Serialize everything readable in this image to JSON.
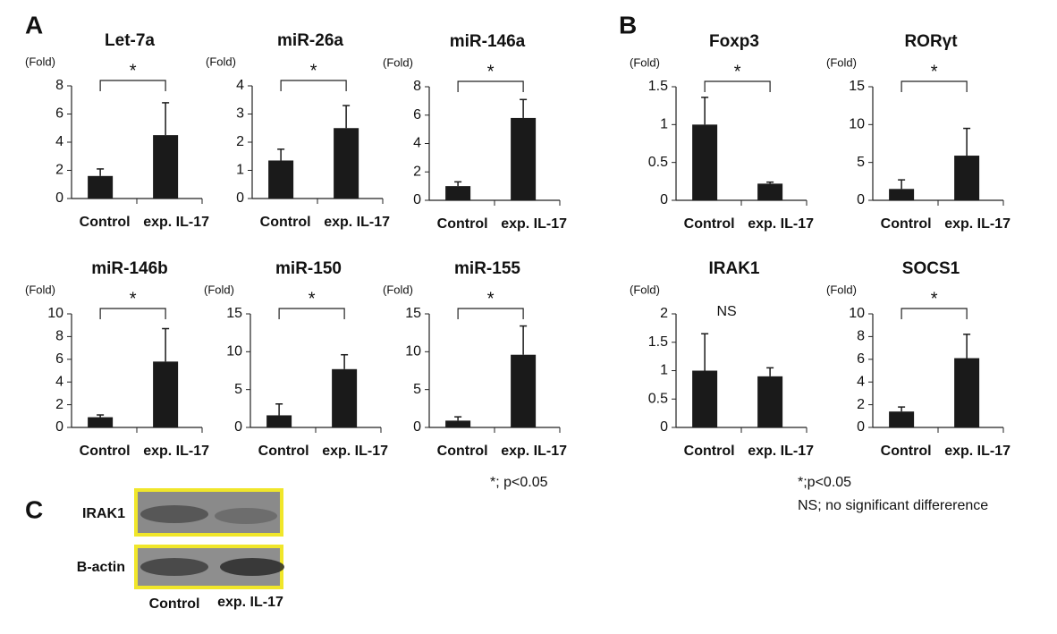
{
  "panel_labels": [
    "A",
    "B",
    "C"
  ],
  "notes": [
    "*; p<0.05",
    "*;p<0.05",
    "NS; no significant differerence"
  ],
  "blot": {
    "rows": [
      "IRAK1",
      "B-actin"
    ],
    "lanes": [
      "Control",
      "exp. IL-17"
    ]
  },
  "chart_data": [
    {
      "type": "bar",
      "title": "Let-7a",
      "y_label": "(Fold)",
      "categories": [
        "Control",
        "exp. IL-17"
      ],
      "values": [
        1.6,
        4.5
      ],
      "errors": [
        0.5,
        2.3
      ],
      "color": "#1a1a1a",
      "ylim": [
        0,
        8
      ],
      "yticks": [
        0,
        2,
        4,
        6,
        8
      ],
      "annotation": "*",
      "bracket": true
    },
    {
      "type": "bar",
      "title": "miR-26a",
      "y_label": "(Fold)",
      "categories": [
        "Control",
        "exp. IL-17"
      ],
      "values": [
        1.35,
        2.5
      ],
      "errors": [
        0.4,
        0.8
      ],
      "color": "#1a1a1a",
      "ylim": [
        0,
        4
      ],
      "yticks": [
        0,
        1,
        2,
        3,
        4
      ],
      "annotation": "*",
      "bracket": true
    },
    {
      "type": "bar",
      "title": "miR-146a",
      "y_label": "(Fold)",
      "categories": [
        "Control",
        "exp. IL-17"
      ],
      "values": [
        1.0,
        5.8
      ],
      "errors": [
        0.3,
        1.3
      ],
      "color": "#1a1a1a",
      "ylim": [
        0,
        8
      ],
      "yticks": [
        0,
        2,
        4,
        6,
        8
      ],
      "annotation": "*",
      "bracket": true
    },
    {
      "type": "bar",
      "title": "miR-146b",
      "y_label": "(Fold)",
      "categories": [
        "Control",
        "exp. IL-17"
      ],
      "values": [
        0.9,
        5.8
      ],
      "errors": [
        0.2,
        2.9
      ],
      "color": "#1a1a1a",
      "ylim": [
        0,
        10
      ],
      "yticks": [
        0,
        2,
        4,
        6,
        8,
        10
      ],
      "annotation": "*",
      "bracket": true
    },
    {
      "type": "bar",
      "title": "miR-150",
      "y_label": "(Fold)",
      "categories": [
        "Control",
        "exp. IL-17"
      ],
      "values": [
        1.6,
        7.7
      ],
      "errors": [
        1.5,
        1.9
      ],
      "color": "#1a1a1a",
      "ylim": [
        0,
        15
      ],
      "yticks": [
        0,
        5,
        10,
        15
      ],
      "annotation": "*",
      "bracket": true
    },
    {
      "type": "bar",
      "title": "miR-155",
      "y_label": "(Fold)",
      "categories": [
        "Control",
        "exp. IL-17"
      ],
      "values": [
        0.9,
        9.6
      ],
      "errors": [
        0.5,
        3.8
      ],
      "color": "#1a1a1a",
      "ylim": [
        0,
        15
      ],
      "yticks": [
        0,
        5,
        10,
        15
      ],
      "annotation": "*",
      "bracket": true
    },
    {
      "type": "bar",
      "title": "Foxp3",
      "y_label": "(Fold)",
      "categories": [
        "Control",
        "exp. IL-17"
      ],
      "values": [
        1.0,
        0.22
      ],
      "errors": [
        0.36,
        0.02
      ],
      "color": "#1a1a1a",
      "ylim": [
        0,
        1.5
      ],
      "yticks": [
        0,
        0.5,
        1,
        1.5
      ],
      "annotation": "*",
      "bracket": true
    },
    {
      "type": "bar",
      "title": "RORγt",
      "y_label": "(Fold)",
      "categories": [
        "Control",
        "exp. IL-17"
      ],
      "values": [
        1.5,
        5.9
      ],
      "errors": [
        1.2,
        3.6
      ],
      "color": "#1a1a1a",
      "ylim": [
        0,
        15
      ],
      "yticks": [
        0,
        5,
        10,
        15
      ],
      "annotation": "*",
      "bracket": true
    },
    {
      "type": "bar",
      "title": "IRAK1",
      "y_label": "(Fold)",
      "categories": [
        "Control",
        "exp. IL-17"
      ],
      "values": [
        1.0,
        0.9
      ],
      "errors": [
        0.65,
        0.15
      ],
      "color": "#1a1a1a",
      "ylim": [
        0,
        2
      ],
      "yticks": [
        0,
        0.5,
        1,
        1.5,
        2
      ],
      "annotation": "NS",
      "bracket": false
    },
    {
      "type": "bar",
      "title": "SOCS1",
      "y_label": "(Fold)",
      "categories": [
        "Control",
        "exp. IL-17"
      ],
      "values": [
        1.4,
        6.1
      ],
      "errors": [
        0.4,
        2.1
      ],
      "color": "#1a1a1a",
      "ylim": [
        0,
        10
      ],
      "yticks": [
        0,
        2,
        4,
        6,
        8,
        10
      ],
      "annotation": "*",
      "bracket": true
    }
  ]
}
